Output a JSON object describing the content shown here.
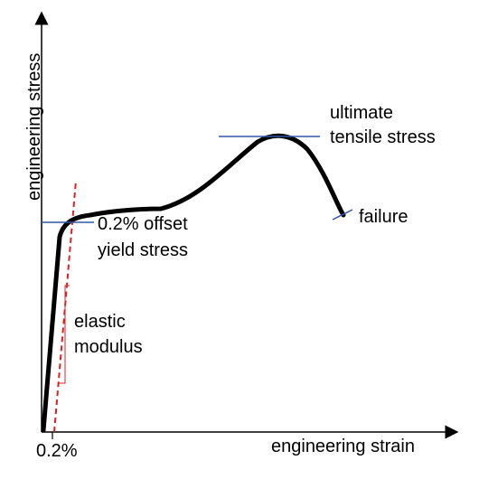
{
  "colors": {
    "curve": "#000000",
    "axes": "#000000",
    "marker_lines": "#3355aa",
    "offset_line": "#e02020",
    "slope_triangle": "#e02020"
  },
  "axes": {
    "x_label": "engineering strain",
    "y_label": "engineering stress",
    "x_tick": "0.2%"
  },
  "annotations": {
    "uts_line1": "ultimate",
    "uts_line2": "tensile stress",
    "yield_line1": "0.2% offset",
    "yield_line2": "yield stress",
    "failure": "failure",
    "modulus_line1": "elastic",
    "modulus_line2": "modulus"
  }
}
